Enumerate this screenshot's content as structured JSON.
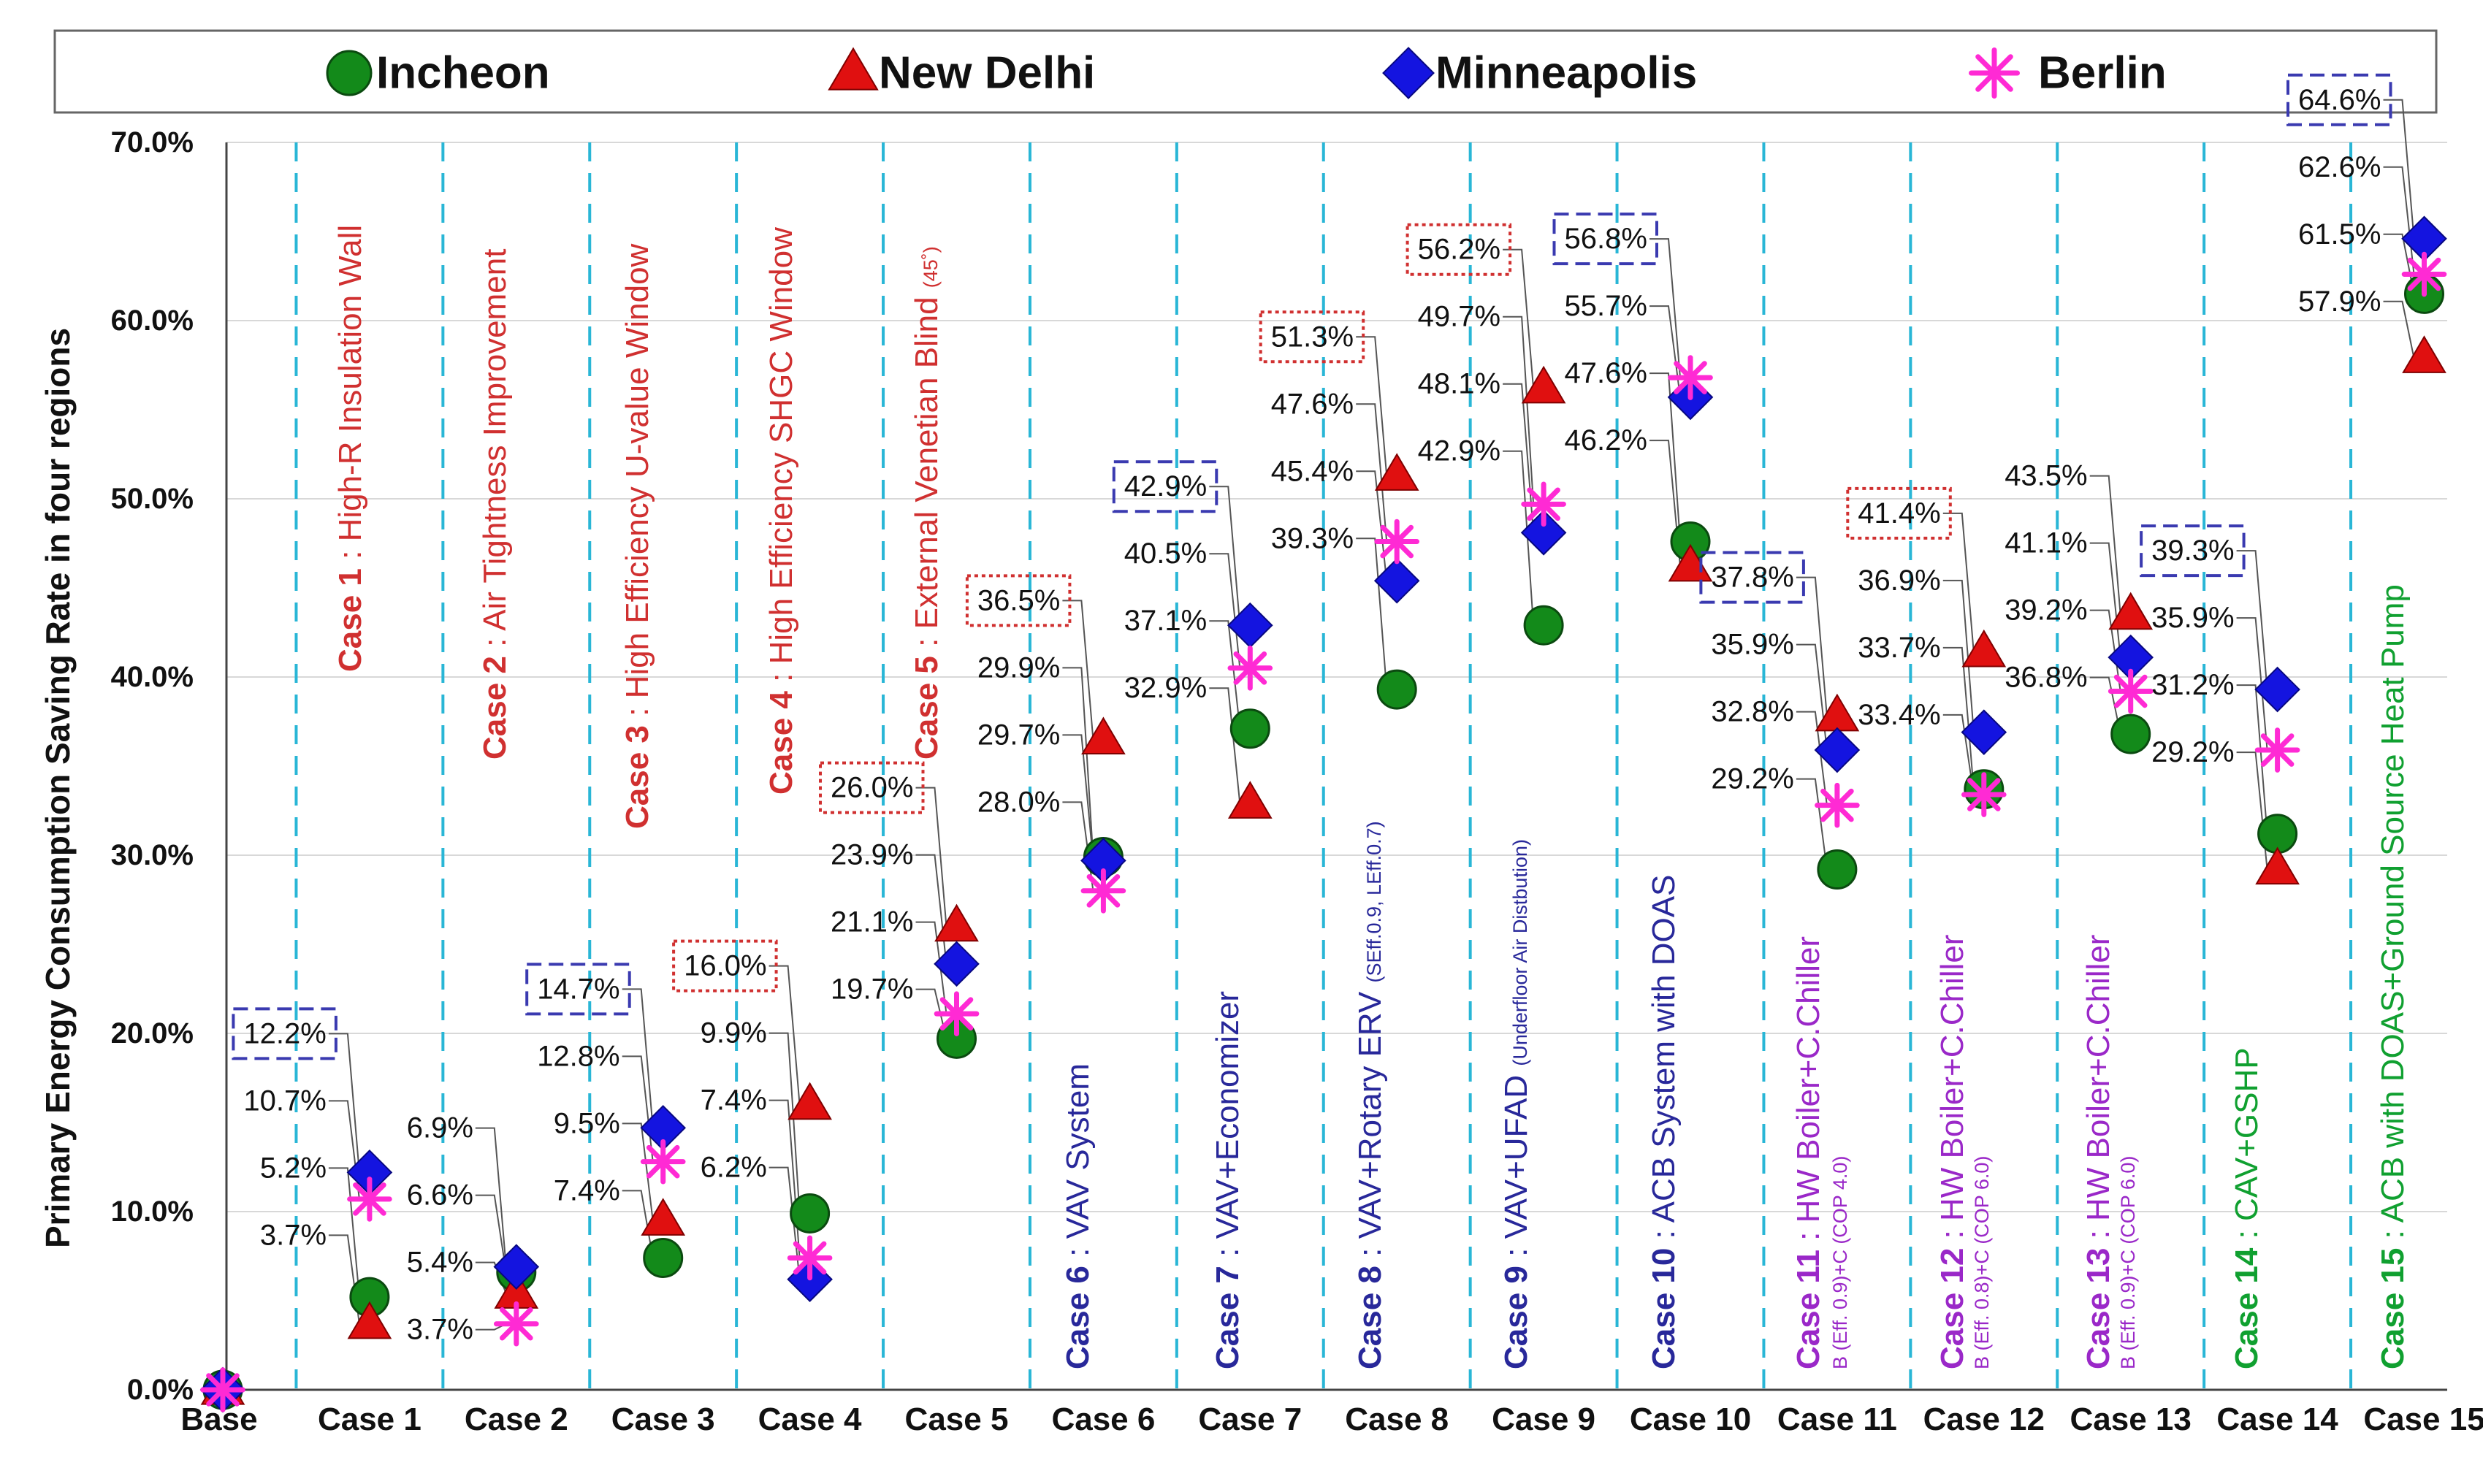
{
  "chart_data": {
    "type": "scatter",
    "ylabel": "Primary Energy Consumption Saving Rate in four regions",
    "ylim": [
      0,
      70
    ],
    "ytick_values": [
      0,
      10,
      20,
      30,
      40,
      50,
      60,
      70
    ],
    "ytick_labels": [
      "0.0%",
      "10.0%",
      "20.0%",
      "30.0%",
      "40.0%",
      "50.0%",
      "60.0%",
      "70.0%"
    ],
    "categories": [
      "Base",
      "Case 1",
      "Case 2",
      "Case 3",
      "Case 4",
      "Case 5",
      "Case 6",
      "Case 7",
      "Case 8",
      "Case 9",
      "Case 10",
      "Case 11",
      "Case 12",
      "Case 13",
      "Case 14",
      "Case 15"
    ],
    "legend_position": "top",
    "series": [
      {
        "name": "Incheon",
        "marker": "circle",
        "color": "#138a1a",
        "values": [
          0,
          5.2,
          6.6,
          7.4,
          9.9,
          19.7,
          29.9,
          37.1,
          39.3,
          42.9,
          47.6,
          29.2,
          33.7,
          36.8,
          31.2,
          61.5
        ]
      },
      {
        "name": "New Delhi",
        "marker": "triangle",
        "color": "#e01010",
        "values": [
          0,
          3.7,
          5.4,
          9.5,
          16.0,
          26.0,
          36.5,
          32.9,
          51.3,
          56.2,
          46.2,
          37.8,
          41.4,
          43.5,
          29.2,
          57.9
        ]
      },
      {
        "name": "Minneapolis",
        "marker": "diamond",
        "color": "#1414e0",
        "values": [
          0,
          12.2,
          6.9,
          14.7,
          6.2,
          23.9,
          29.7,
          42.9,
          45.4,
          48.1,
          55.7,
          35.9,
          36.9,
          41.1,
          39.3,
          64.6
        ]
      },
      {
        "name": "Berlin",
        "marker": "asterisk",
        "color": "#ff2ad4",
        "values": [
          0,
          10.7,
          3.7,
          12.8,
          7.4,
          21.1,
          28.0,
          40.5,
          47.6,
          49.7,
          56.8,
          32.8,
          33.4,
          39.2,
          35.9,
          62.6
        ]
      }
    ],
    "case_labels": [
      {
        "num": "Case 1",
        "desc": " : High-R Insulation Wall",
        "sub": "",
        "color": "#d03030"
      },
      {
        "num": "Case 2",
        "desc": " : Air Tightness Improvement",
        "sub": "",
        "color": "#d03030"
      },
      {
        "num": "Case 3",
        "desc": " : High Efficiency U-value Window",
        "sub": "",
        "color": "#d03030"
      },
      {
        "num": "Case 4",
        "desc": " : High Efficiency SHGC Window",
        "sub": "",
        "color": "#d03030"
      },
      {
        "num": "Case 5",
        "desc": " : External Venetian Blind ",
        "sub": "(45˚)",
        "color": "#d03030"
      },
      {
        "num": "Case 6",
        "desc": " : VAV System",
        "sub": "",
        "color": "#28289a"
      },
      {
        "num": "Case 7",
        "desc": " : VAV+Economizer",
        "sub": "",
        "color": "#28289a"
      },
      {
        "num": "Case 8",
        "desc": " : VAV+Rotary ERV ",
        "sub": "(SEff.0.9, LEff.0.7)",
        "color": "#28289a"
      },
      {
        "num": "Case 9",
        "desc": " : VAV+UFAD ",
        "sub": "(Underfloor Air Distbution)",
        "color": "#28289a"
      },
      {
        "num": "Case 10",
        "desc": " : ACB System with DOAS",
        "sub": "",
        "color": "#28289a"
      },
      {
        "num": "Case 11",
        "desc": " : HW Boiler+C.Chiller",
        "sub": "B (Eff. 0.9)+C (COP 4.0)",
        "color": "#9a28c8"
      },
      {
        "num": "Case 12",
        "desc": " : HW Boiler+C.Chiller",
        "sub": "B (Eff. 0.8)+C (COP 6.0)",
        "color": "#9a28c8"
      },
      {
        "num": "Case 13",
        "desc": " : HW Boiler+C.Chiller",
        "sub": "B (Eff. 0.9)+C (COP 6.0)",
        "color": "#9a28c8"
      },
      {
        "num": "Case 14",
        "desc": " : CAV+GSHP",
        "sub": "",
        "color": "#10a030"
      },
      {
        "num": "Case 15",
        "desc": " : ACB with DOAS+Ground Source Heat Pump",
        "sub": "",
        "color": "#10a030"
      }
    ],
    "annotations": [
      {
        "case": 1,
        "text": "12.2%",
        "series": "Minneapolis",
        "box": "blue-dashed"
      },
      {
        "case": 1,
        "text": "10.7%",
        "series": "Berlin",
        "box": ""
      },
      {
        "case": 1,
        "text": "5.2%",
        "series": "Incheon",
        "box": ""
      },
      {
        "case": 1,
        "text": "3.7%",
        "series": "New Delhi",
        "box": ""
      },
      {
        "case": 2,
        "text": "6.9%",
        "series": "Minneapolis",
        "box": ""
      },
      {
        "case": 2,
        "text": "6.6%",
        "series": "Incheon",
        "box": ""
      },
      {
        "case": 2,
        "text": "5.4%",
        "series": "New Delhi",
        "box": ""
      },
      {
        "case": 2,
        "text": "3.7%",
        "series": "Berlin",
        "box": ""
      },
      {
        "case": 3,
        "text": "14.7%",
        "series": "Minneapolis",
        "box": "blue-dashed"
      },
      {
        "case": 3,
        "text": "12.8%",
        "series": "Berlin",
        "box": ""
      },
      {
        "case": 3,
        "text": "9.5%",
        "series": "New Delhi",
        "box": ""
      },
      {
        "case": 3,
        "text": "7.4%",
        "series": "Incheon",
        "box": ""
      },
      {
        "case": 4,
        "text": "16.0%",
        "series": "New Delhi",
        "box": "red-dotted"
      },
      {
        "case": 4,
        "text": "9.9%",
        "series": "Incheon",
        "box": ""
      },
      {
        "case": 4,
        "text": "7.4%",
        "series": "Berlin",
        "box": ""
      },
      {
        "case": 4,
        "text": "6.2%",
        "series": "Minneapolis",
        "box": ""
      },
      {
        "case": 5,
        "text": "26.0%",
        "series": "New Delhi",
        "box": "red-dotted"
      },
      {
        "case": 5,
        "text": "23.9%",
        "series": "Minneapolis",
        "box": ""
      },
      {
        "case": 5,
        "text": "21.1%",
        "series": "Berlin",
        "box": ""
      },
      {
        "case": 5,
        "text": "19.7%",
        "series": "Incheon",
        "box": ""
      },
      {
        "case": 6,
        "text": "36.5%",
        "series": "New Delhi",
        "box": "red-dotted"
      },
      {
        "case": 6,
        "text": "29.9%",
        "series": "Incheon",
        "box": ""
      },
      {
        "case": 6,
        "text": "29.7%",
        "series": "Minneapolis",
        "box": ""
      },
      {
        "case": 6,
        "text": "28.0%",
        "series": "Berlin",
        "box": ""
      },
      {
        "case": 7,
        "text": "42.9%",
        "series": "Minneapolis",
        "box": "blue-dashed"
      },
      {
        "case": 7,
        "text": "40.5%",
        "series": "Berlin",
        "box": ""
      },
      {
        "case": 7,
        "text": "37.1%",
        "series": "Incheon",
        "box": ""
      },
      {
        "case": 7,
        "text": "32.9%",
        "series": "New Delhi",
        "box": ""
      },
      {
        "case": 8,
        "text": "51.3%",
        "series": "New Delhi",
        "box": "red-dotted"
      },
      {
        "case": 8,
        "text": "47.6%",
        "series": "Berlin",
        "box": ""
      },
      {
        "case": 8,
        "text": "45.4%",
        "series": "Minneapolis",
        "box": ""
      },
      {
        "case": 8,
        "text": "39.3%",
        "series": "Incheon",
        "box": ""
      },
      {
        "case": 9,
        "text": "56.2%",
        "series": "New Delhi",
        "box": "red-dotted"
      },
      {
        "case": 9,
        "text": "49.7%",
        "series": "Berlin",
        "box": ""
      },
      {
        "case": 9,
        "text": "48.1%",
        "series": "Minneapolis",
        "box": ""
      },
      {
        "case": 9,
        "text": "42.9%",
        "series": "Incheon",
        "box": ""
      },
      {
        "case": 10,
        "text": "56.8%",
        "series": "Berlin",
        "box": "blue-dashed"
      },
      {
        "case": 10,
        "text": "55.7%",
        "series": "Minneapolis",
        "box": ""
      },
      {
        "case": 10,
        "text": "47.6%",
        "series": "Incheon",
        "box": ""
      },
      {
        "case": 10,
        "text": "46.2%",
        "series": "New Delhi",
        "box": ""
      },
      {
        "case": 11,
        "text": "37.8%",
        "series": "New Delhi",
        "box": "blue-dashed"
      },
      {
        "case": 11,
        "text": "35.9%",
        "series": "Minneapolis",
        "box": ""
      },
      {
        "case": 11,
        "text": "32.8%",
        "series": "Berlin",
        "box": ""
      },
      {
        "case": 11,
        "text": "29.2%",
        "series": "Incheon",
        "box": ""
      },
      {
        "case": 12,
        "text": "41.4%",
        "series": "New Delhi",
        "box": "red-dotted"
      },
      {
        "case": 12,
        "text": "36.9%",
        "series": "Minneapolis",
        "box": ""
      },
      {
        "case": 12,
        "text": "33.7%",
        "series": "Incheon",
        "box": ""
      },
      {
        "case": 12,
        "text": "33.4%",
        "series": "Berlin",
        "box": ""
      },
      {
        "case": 13,
        "text": "43.5%",
        "series": "New Delhi",
        "box": ""
      },
      {
        "case": 13,
        "text": "41.1%",
        "series": "Minneapolis",
        "box": ""
      },
      {
        "case": 13,
        "text": "39.2%",
        "series": "Berlin",
        "box": ""
      },
      {
        "case": 13,
        "text": "36.8%",
        "series": "Incheon",
        "box": ""
      },
      {
        "case": 14,
        "text": "39.3%",
        "series": "Minneapolis",
        "box": "blue-dashed"
      },
      {
        "case": 14,
        "text": "35.9%",
        "series": "Berlin",
        "box": ""
      },
      {
        "case": 14,
        "text": "31.2%",
        "series": "Incheon",
        "box": ""
      },
      {
        "case": 14,
        "text": "29.2%",
        "series": "New Delhi",
        "box": ""
      },
      {
        "case": 15,
        "text": "64.6%",
        "series": "Minneapolis",
        "box": "blue-dashed"
      },
      {
        "case": 15,
        "text": "62.6%",
        "series": "Berlin",
        "box": ""
      },
      {
        "case": 15,
        "text": "61.5%",
        "series": "Incheon",
        "box": ""
      },
      {
        "case": 15,
        "text": "57.9%",
        "series": "New Delhi",
        "box": ""
      }
    ],
    "colors": {
      "gridline": "#29b6d6",
      "leader": "#555555",
      "box_blue": "#3a3ab0",
      "box_red": "#d03030"
    }
  }
}
